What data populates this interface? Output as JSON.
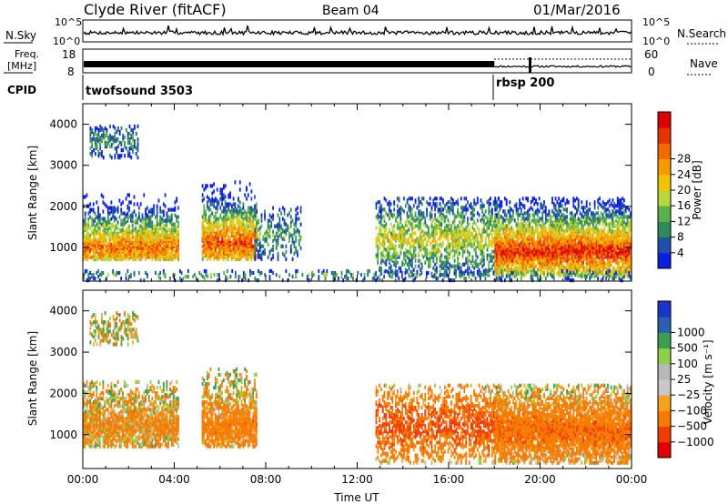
{
  "header": {
    "station": "Clyde River (fitACF)",
    "beam": "Beam 04",
    "date": "01/Mar/2016"
  },
  "noise_panel": {
    "left_label": "N.Sky",
    "right_label": "N.Search",
    "left_ticks": [
      "10^5",
      "10^0"
    ],
    "right_ticks": [
      "10^5",
      "10^0"
    ]
  },
  "freq_panel": {
    "left_label_1": "Freq.",
    "left_label_2": "[MHz]",
    "right_label": "Nave",
    "left_ticks": [
      "18",
      "8"
    ],
    "right_ticks": [
      "60",
      "0"
    ]
  },
  "cpid": {
    "label": "CPID",
    "segments": [
      {
        "name": "twofsound 3503",
        "start_hour": 0
      },
      {
        "name": "rbsp 200",
        "start_hour": 18
      }
    ]
  },
  "colors": {
    "power_scale": [
      "#0a1ee0",
      "#1f4fa8",
      "#2e8a5a",
      "#5ab04a",
      "#b9d640",
      "#f0c400",
      "#f59a00",
      "#f26a00",
      "#e63200",
      "#dd0000"
    ],
    "velocity_scale": [
      "#e00000",
      "#f03c00",
      "#f57a00",
      "#f7a21e",
      "#c8c8c8",
      "#b8b8b8",
      "#8fd04a",
      "#3aa050",
      "#2c5fb0",
      "#1a35c8"
    ]
  },
  "chart_data": [
    {
      "type": "heatmap",
      "name": "power",
      "ylabel": "Slant Range [km]",
      "ylim": [
        180,
        4500
      ],
      "y_ticks": [
        1000,
        2000,
        3000,
        4000
      ],
      "x_ticks": [
        "00:00",
        "04:00",
        "08:00",
        "12:00",
        "16:00",
        "20:00",
        "00:00"
      ],
      "xlim_hours": [
        0,
        24
      ],
      "colorbar": {
        "label": "Power [dB]",
        "range": [
          0,
          32
        ],
        "ticks": [
          "4",
          "8",
          "12",
          "16",
          "20",
          "24",
          "28"
        ]
      },
      "regions": [
        {
          "t": [
            0.0,
            4.2
          ],
          "r": [
            700,
            2300
          ],
          "dens": 0.9,
          "center": 1000,
          "peak": 24
        },
        {
          "t": [
            0.3,
            2.4
          ],
          "r": [
            3200,
            4000
          ],
          "dens": 0.45,
          "center": 3600,
          "peak": 9
        },
        {
          "t": [
            5.2,
            7.6
          ],
          "r": [
            700,
            2600
          ],
          "dens": 0.85,
          "center": 1100,
          "peak": 26
        },
        {
          "t": [
            7.5,
            9.5
          ],
          "r": [
            700,
            2000
          ],
          "dens": 0.35,
          "center": 1300,
          "peak": 10
        },
        {
          "t": [
            12.8,
            18.2
          ],
          "r": [
            300,
            2200
          ],
          "dens": 0.55,
          "center": 1200,
          "peak": 16
        },
        {
          "t": [
            18.0,
            24.0
          ],
          "r": [
            300,
            2200
          ],
          "dens": 0.95,
          "center": 900,
          "peak": 28
        },
        {
          "t": [
            0.0,
            24.0
          ],
          "r": [
            180,
            450
          ],
          "dens": 0.25,
          "center": 300,
          "peak": 10
        }
      ]
    },
    {
      "type": "heatmap",
      "name": "velocity",
      "ylabel": "Slant Range [km]",
      "xlabel": "Time UT",
      "ylim": [
        180,
        4500
      ],
      "y_ticks": [
        1000,
        2000,
        3000,
        4000
      ],
      "x_ticks": [
        "00:00",
        "04:00",
        "08:00",
        "12:00",
        "16:00",
        "20:00",
        "00:00"
      ],
      "xlim_hours": [
        0,
        24
      ],
      "colorbar": {
        "label": "Velocity [m s⁻¹]",
        "ticks": [
          "1000",
          "500",
          "100",
          "25",
          "−25",
          "−100",
          "−500",
          "−1000"
        ]
      },
      "regions": [
        {
          "t": [
            0.0,
            4.2
          ],
          "r": [
            700,
            2300
          ],
          "dens": 0.9,
          "center": 1200,
          "peak": -200
        },
        {
          "t": [
            0.3,
            2.4
          ],
          "r": [
            3200,
            4000
          ],
          "dens": 0.45,
          "center": 3600,
          "peak": 0
        },
        {
          "t": [
            5.2,
            7.6
          ],
          "r": [
            700,
            2600
          ],
          "dens": 0.85,
          "center": 1200,
          "peak": -300
        },
        {
          "t": [
            12.8,
            18.2
          ],
          "r": [
            300,
            2200
          ],
          "dens": 0.55,
          "center": 1200,
          "peak": -600
        },
        {
          "t": [
            18.0,
            24.0
          ],
          "r": [
            300,
            2200
          ],
          "dens": 0.95,
          "center": 1100,
          "peak": -400
        }
      ]
    }
  ]
}
